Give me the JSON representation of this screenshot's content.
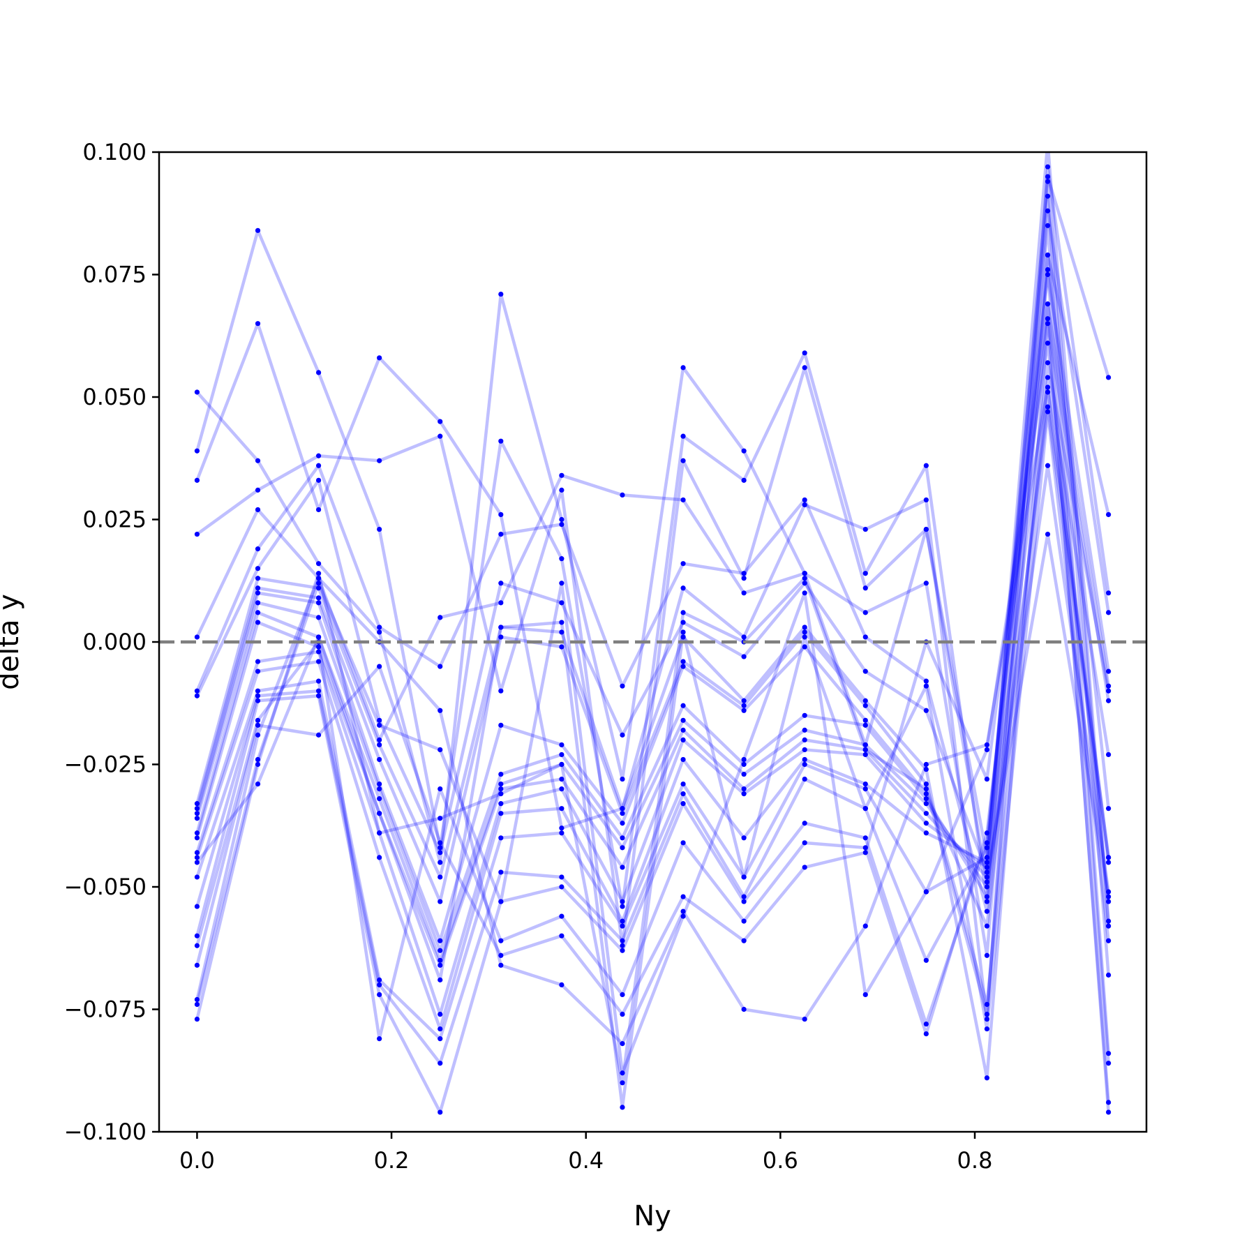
{
  "chart_data": {
    "type": "line",
    "title": "",
    "xlabel": "Ny",
    "ylabel": "delta y",
    "xlim": [
      -0.0390625,
      0.9765625
    ],
    "ylim": [
      -0.1,
      0.1
    ],
    "xticks": [
      0.0,
      0.2,
      0.4,
      0.6,
      0.8
    ],
    "xtick_labels": [
      "0.0",
      "0.2",
      "0.4",
      "0.6",
      "0.8"
    ],
    "yticks": [
      -0.1,
      -0.075,
      -0.05,
      -0.025,
      0.0,
      0.025,
      0.05,
      0.075,
      0.1
    ],
    "ytick_labels": [
      "−0.100",
      "−0.075",
      "−0.050",
      "−0.025",
      "0.000",
      "0.025",
      "0.050",
      "0.075",
      "0.100"
    ],
    "grid": false,
    "legend": "none",
    "reference_line": {
      "y": 0.0,
      "style": "dashed",
      "color": "#7f7f7f"
    },
    "series_color": "#0000ff",
    "line_alpha": 0.25,
    "x": [
      0.0,
      0.0625,
      0.125,
      0.1875,
      0.25,
      0.3125,
      0.375,
      0.4375,
      0.5,
      0.5625,
      0.625,
      0.6875,
      0.75,
      0.8125,
      0.875,
      0.9375
    ],
    "series": [
      {
        "values": [
          0.051,
          0.037,
          0.016,
          0.002,
          -0.045,
          0.071,
          0.025,
          -0.028,
          0.056,
          0.039,
          0.014,
          -0.021,
          0.023,
          -0.049,
          0.079,
          0.026
        ]
      },
      {
        "values": [
          0.039,
          0.084,
          0.055,
          0.023,
          -0.042,
          0.041,
          0.017,
          -0.054,
          0.042,
          0.033,
          0.059,
          0.014,
          0.036,
          -0.053,
          0.095,
          0.054
        ]
      },
      {
        "values": [
          0.033,
          0.065,
          0.027,
          0.058,
          0.045,
          0.026,
          -0.038,
          -0.034,
          0.011,
          0.001,
          0.028,
          0.023,
          0.029,
          -0.077,
          0.097,
          0.01
        ]
      },
      {
        "values": [
          0.022,
          0.031,
          0.038,
          0.037,
          0.042,
          -0.01,
          0.031,
          -0.062,
          0.037,
          0.013,
          0.056,
          0.011,
          0.023,
          -0.044,
          0.075,
          -0.006
        ]
      },
      {
        "values": [
          0.001,
          0.027,
          0.013,
          -0.02,
          0.005,
          0.008,
          0.034,
          0.03,
          0.029,
          0.01,
          0.014,
          0.006,
          0.012,
          -0.064,
          0.088,
          0.006
        ]
      },
      {
        "values": [
          -0.01,
          0.019,
          0.036,
          0.003,
          -0.005,
          0.022,
          0.024,
          -0.009,
          0.016,
          0.014,
          0.029,
          0.001,
          -0.008,
          -0.055,
          0.069,
          -0.009
        ]
      },
      {
        "values": [
          -0.011,
          0.015,
          0.033,
          -0.016,
          -0.043,
          0.012,
          0.008,
          -0.019,
          0.004,
          -0.003,
          0.012,
          -0.006,
          -0.014,
          -0.047,
          0.057,
          -0.01
        ]
      },
      {
        "values": [
          -0.033,
          0.013,
          0.011,
          -0.021,
          -0.048,
          0.003,
          0.002,
          -0.034,
          0.001,
          -0.012,
          0.003,
          -0.012,
          -0.026,
          -0.089,
          0.065,
          -0.012
        ]
      },
      {
        "values": [
          -0.034,
          0.011,
          0.009,
          -0.024,
          -0.053,
          0.001,
          -0.001,
          -0.035,
          -0.004,
          -0.013,
          0.002,
          -0.013,
          -0.029,
          -0.074,
          0.054,
          -0.023
        ]
      },
      {
        "values": [
          -0.035,
          0.01,
          0.008,
          -0.029,
          -0.061,
          -0.017,
          -0.021,
          -0.037,
          -0.005,
          -0.014,
          -0.001,
          -0.016,
          -0.031,
          -0.058,
          0.051,
          -0.044
        ]
      },
      {
        "values": [
          -0.036,
          0.008,
          0.005,
          -0.03,
          -0.063,
          -0.027,
          -0.023,
          -0.04,
          -0.013,
          -0.025,
          -0.015,
          -0.017,
          -0.032,
          -0.052,
          0.048,
          -0.045
        ]
      },
      {
        "values": [
          -0.039,
          0.006,
          0.001,
          -0.032,
          -0.065,
          -0.029,
          -0.025,
          -0.042,
          -0.016,
          -0.027,
          -0.018,
          -0.021,
          -0.033,
          -0.05,
          0.036,
          -0.051
        ]
      },
      {
        "values": [
          -0.04,
          0.004,
          -0.001,
          -0.035,
          -0.066,
          -0.03,
          -0.028,
          -0.046,
          -0.018,
          -0.03,
          -0.02,
          -0.022,
          -0.035,
          -0.048,
          0.022,
          -0.052
        ]
      },
      {
        "values": [
          -0.043,
          -0.004,
          -0.002,
          -0.039,
          -0.076,
          -0.033,
          -0.03,
          -0.053,
          -0.02,
          -0.031,
          -0.022,
          -0.023,
          -0.037,
          -0.046,
          0.102,
          -0.057
        ]
      },
      {
        "values": [
          -0.044,
          -0.006,
          -0.004,
          -0.044,
          -0.079,
          -0.035,
          -0.034,
          -0.057,
          -0.024,
          -0.04,
          -0.024,
          -0.029,
          -0.039,
          -0.045,
          0.094,
          -0.058
        ]
      },
      {
        "values": [
          -0.048,
          -0.01,
          -0.008,
          -0.069,
          -0.081,
          -0.04,
          -0.039,
          -0.058,
          -0.029,
          -0.048,
          -0.025,
          -0.03,
          -0.051,
          -0.044,
          0.091,
          -0.068
        ]
      },
      {
        "values": [
          -0.054,
          -0.011,
          -0.01,
          -0.07,
          -0.086,
          -0.047,
          -0.048,
          -0.061,
          -0.031,
          -0.052,
          -0.028,
          -0.034,
          -0.065,
          -0.042,
          0.085,
          -0.084
        ]
      },
      {
        "values": [
          -0.06,
          -0.012,
          -0.011,
          -0.072,
          -0.096,
          -0.053,
          -0.05,
          -0.063,
          -0.033,
          -0.053,
          -0.037,
          -0.04,
          -0.078,
          -0.041,
          0.076,
          -0.086
        ]
      },
      {
        "values": [
          -0.062,
          -0.016,
          0.0,
          -0.081,
          -0.03,
          -0.061,
          -0.056,
          -0.072,
          -0.041,
          -0.057,
          -0.041,
          -0.042,
          -0.08,
          -0.039,
          0.066,
          -0.094
        ]
      },
      {
        "values": [
          -0.066,
          -0.017,
          -0.019,
          -0.005,
          -0.041,
          -0.064,
          -0.06,
          -0.076,
          -0.052,
          -0.061,
          -0.046,
          -0.043,
          0.0,
          -0.028,
          0.069,
          -0.096
        ]
      },
      {
        "values": [
          -0.073,
          -0.019,
          0.013,
          0.0,
          -0.014,
          -0.066,
          -0.07,
          -0.082,
          -0.055,
          -0.075,
          -0.077,
          -0.058,
          -0.025,
          -0.021,
          0.052,
          -0.044
        ]
      },
      {
        "values": [
          -0.074,
          -0.024,
          0.012,
          -0.017,
          -0.022,
          -0.053,
          0.012,
          -0.088,
          -0.056,
          -0.024,
          0.01,
          -0.072,
          -0.051,
          -0.022,
          0.061,
          -0.053
        ]
      },
      {
        "values": [
          -0.077,
          -0.025,
          0.014,
          -0.039,
          -0.036,
          -0.031,
          -0.025,
          -0.09,
          0.006,
          0.0,
          0.013,
          -0.022,
          -0.03,
          -0.076,
          0.079,
          -0.034
        ]
      },
      {
        "values": [
          -0.045,
          -0.029,
          0.001,
          -0.035,
          -0.069,
          0.003,
          0.004,
          -0.095,
          0.002,
          -0.048,
          0.001,
          -0.034,
          -0.009,
          -0.079,
          0.047,
          -0.061
        ]
      }
    ]
  }
}
